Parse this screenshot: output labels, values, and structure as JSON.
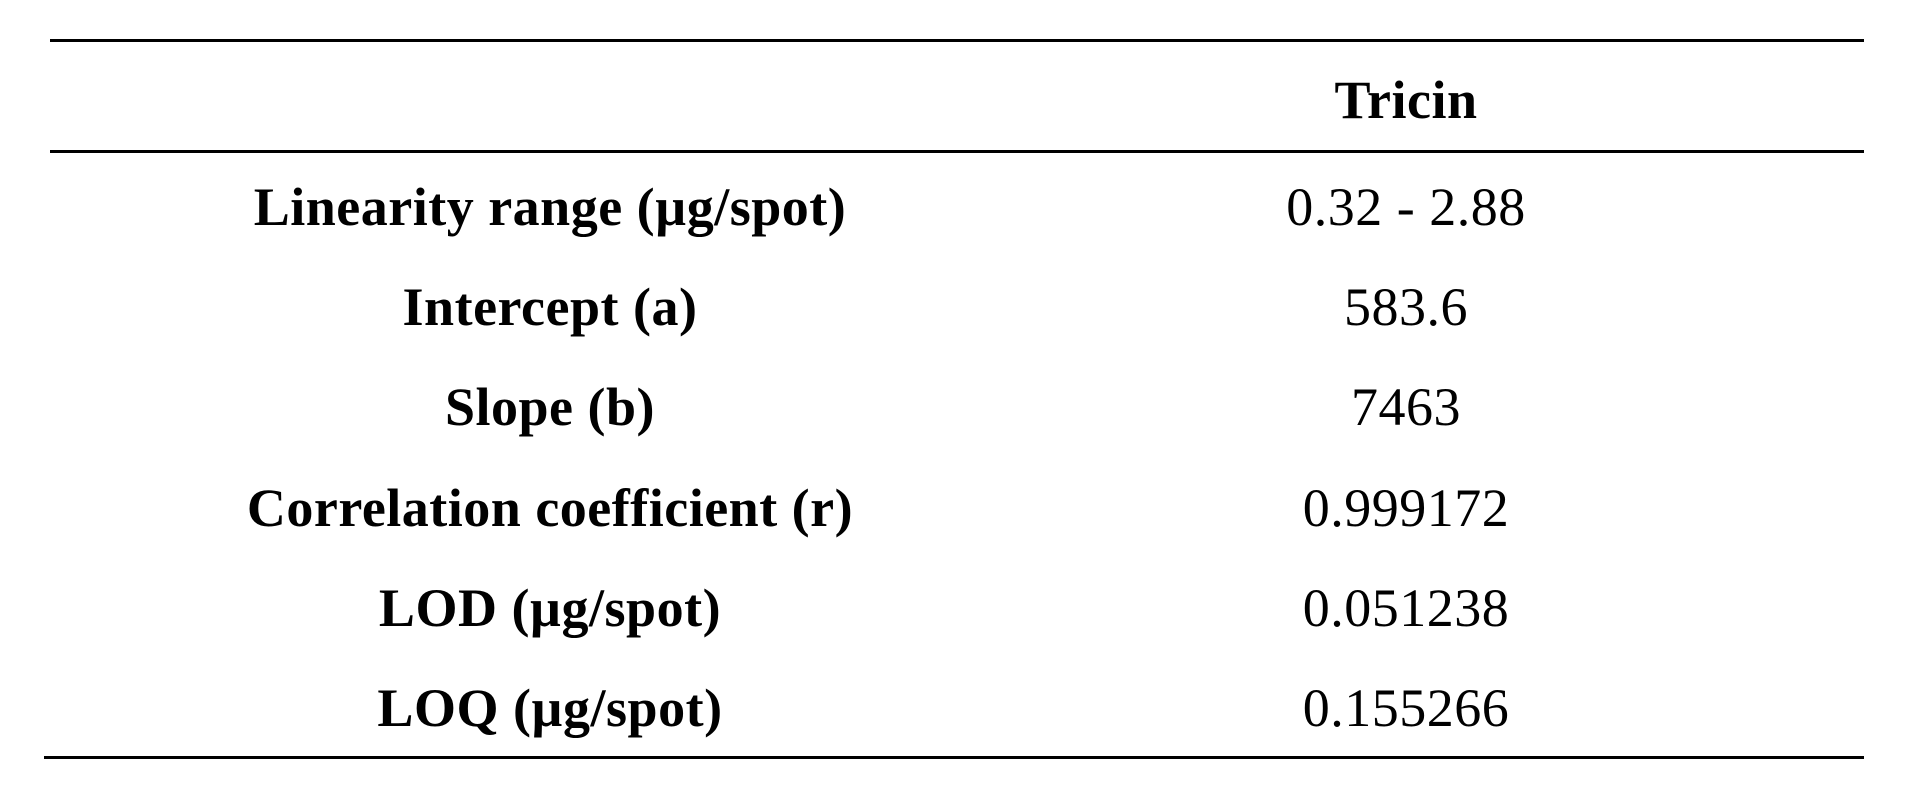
{
  "table": {
    "header": {
      "label": "",
      "value": "Tricin"
    },
    "rows": [
      {
        "label": "Linearity range (µg/spot)",
        "value": "0.32 - 2.88"
      },
      {
        "label": "Intercept (a)",
        "value": "583.6"
      },
      {
        "label": "Slope (b)",
        "value": "7463"
      },
      {
        "label": "Correlation coefficient (r)",
        "value": "0.999172"
      },
      {
        "label": "LOD (µg/spot)",
        "value": "0.051238"
      },
      {
        "label": "LOQ (µg/spot)",
        "value": "0.155266"
      }
    ]
  }
}
